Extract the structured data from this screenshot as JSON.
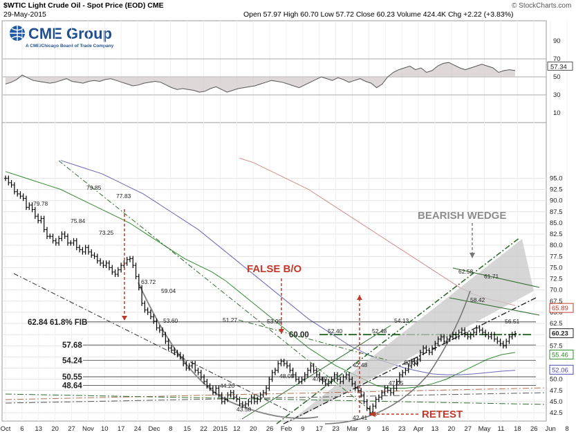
{
  "header": {
    "title": "$WTIC Light Crude Oil - Spot Price (EOD) CME",
    "date": "29-May-2015",
    "ohlc": "Open 57.97  High 60.70  Low 57.72  Close 60.23  Volume 424.4K  Chg +2.22 (+3.83%)",
    "watermark": "© StockCharts.com"
  },
  "logo": {
    "name": "CME Group",
    "subtitle": "A CME/Chicago Board of Trade Company"
  },
  "colors": {
    "price": "#000000",
    "ma_green": "#2e8b2e",
    "ma_blue": "#6a67b8",
    "ma_red": "#d48c8c",
    "annotation_red": "#c0392b",
    "annotation_gray": "#8c8c8c",
    "channel_green": "#2e6b2e",
    "badge_red": "#c0392b",
    "badge_green": "#2e8b2e",
    "badge_blue": "#4a4ab0"
  },
  "chart_data": [
    {
      "type": "line",
      "panel": "indicator",
      "ylim": [
        0,
        100
      ],
      "y_ticks": [
        10,
        30,
        50,
        70,
        90
      ],
      "last_value_label": "57.34",
      "levels": [
        30,
        50,
        70
      ],
      "values": [
        42,
        44,
        47,
        52,
        49,
        46,
        45,
        44,
        43,
        44,
        46,
        48,
        45,
        44,
        43,
        45,
        46,
        45,
        47,
        48,
        46,
        44,
        42,
        40,
        41,
        43,
        44,
        45,
        44,
        41,
        38,
        36,
        37,
        36,
        35,
        33,
        34,
        37,
        39,
        36,
        33,
        35,
        37,
        38,
        39,
        40,
        42,
        44,
        46,
        45,
        44,
        42,
        40,
        38,
        41,
        44,
        47,
        50,
        48,
        46,
        49,
        47,
        44,
        46,
        48,
        45,
        43,
        38,
        42,
        50,
        55,
        58,
        60,
        62,
        58,
        60,
        55,
        57,
        62,
        65,
        66,
        63,
        60,
        58,
        60,
        62,
        64,
        62,
        60,
        55,
        57,
        58,
        57
      ]
    },
    {
      "type": "line",
      "panel": "price",
      "title": "$WTIC Light Crude Oil - Spot Price (EOD) CME",
      "ylim": [
        41,
        99
      ],
      "y_ticks": [
        42.5,
        45.0,
        47.5,
        50.0,
        52.5,
        55.0,
        57.5,
        60.0,
        62.5,
        65.0,
        67.5,
        70.0,
        72.5,
        75.0,
        77.5,
        80.0,
        82.5,
        85.0,
        87.5,
        90.0,
        92.5,
        95.0
      ],
      "x_labels": [
        "Oct",
        "6",
        "13",
        "20",
        "27",
        "Nov",
        "10",
        "17",
        "24",
        "Dec",
        "8",
        "15",
        "22",
        "2015",
        "12",
        "20",
        "26",
        "Feb",
        "9",
        "17",
        "23",
        "Mar",
        "9",
        "16",
        "23",
        "Apr",
        "13",
        "20",
        "27",
        "May",
        "11",
        "18",
        "26",
        "Jun",
        "8"
      ],
      "close": [
        95.0,
        94.0,
        93.5,
        92.0,
        91.5,
        91.0,
        90.5,
        88.5,
        89.0,
        88.0,
        86.5,
        85.5,
        86.0,
        83.5,
        82.0,
        82.0,
        81.0,
        80.5,
        81.5,
        82.5,
        82.0,
        80.5,
        80.5,
        81.0,
        79.5,
        79.0,
        78.5,
        79.5,
        78.5,
        77.8,
        77.5,
        76.5,
        76.0,
        75.5,
        76.0,
        75.0,
        74.0,
        73.5,
        74.5,
        75.5,
        76.0,
        76.8,
        77.0,
        75.5,
        73.0,
        70.5,
        67.0,
        65.5,
        65.0,
        64.0,
        63.0,
        61.5,
        61.0,
        60.0,
        58.5,
        57.0,
        56.5,
        56.0,
        55.5,
        55.0,
        53.5,
        52.5,
        53.0,
        53.5,
        52.0,
        51.5,
        50.5,
        49.5,
        48.5,
        48.0,
        47.0,
        48.0,
        46.5,
        45.0,
        45.5,
        46.5,
        47.0,
        46.0,
        45.5,
        44.5,
        44.2,
        44.5,
        45.0,
        46.0,
        45.0,
        45.5,
        46.5,
        47.0,
        48.0,
        50.0,
        51.5,
        52.0,
        53.5,
        54.0,
        53.5,
        53.0,
        52.0,
        51.0,
        50.0,
        49.5,
        50.0,
        51.0,
        52.0,
        53.0,
        52.0,
        51.0,
        50.0,
        49.5,
        49.0,
        49.5,
        50.0,
        51.0,
        50.0,
        49.5,
        50.5,
        51.0,
        50.0,
        49.0,
        48.0,
        47.5,
        46.5,
        45.0,
        43.5,
        42.5,
        44.0,
        45.5,
        46.0,
        47.0,
        48.0,
        47.5,
        47.0,
        48.0,
        49.5,
        51.0,
        51.5,
        52.0,
        53.0,
        54.0,
        53.5,
        54.5,
        56.0,
        57.0,
        56.5,
        56.0,
        57.0,
        58.0,
        59.0,
        59.5,
        58.5,
        59.0,
        59.5,
        60.0,
        59.5,
        60.5,
        61.0,
        60.0,
        59.5,
        60.0,
        60.5,
        61.5,
        61.0,
        60.5,
        60.0,
        59.5,
        60.0,
        59.0,
        58.5,
        58.0,
        57.5,
        58.5,
        59.5,
        60.0,
        60.23
      ],
      "series": [
        {
          "name": "",
          "role": "ma_short",
          "values": [
            96.5,
            95.5,
            94.5,
            93.5,
            92.5,
            91.0,
            89.5,
            88.0,
            86.5,
            85.0,
            83.0,
            81.0,
            79.0,
            77.0,
            75.5,
            74.0,
            72.0,
            69.5,
            67.0,
            64.5,
            62.0,
            59.5,
            57.0,
            55.0,
            53.0,
            51.5,
            50.0,
            48.5,
            48.0,
            48.0,
            48.3,
            49.0,
            50.0,
            51.5,
            53.0,
            54.5,
            55.5,
            56.0
          ]
        },
        {
          "name": "",
          "role": "ma_mid",
          "values": [
            null,
            null,
            null,
            null,
            99.0,
            98.0,
            97.0,
            96.0,
            94.5,
            93.0,
            91.5,
            89.5,
            87.5,
            85.5,
            83.5,
            81.0,
            78.5,
            76.0,
            73.5,
            71.0,
            68.5,
            66.0,
            63.5,
            61.5,
            59.5,
            57.5,
            56.0,
            54.5,
            53.5,
            52.5,
            51.8,
            51.2,
            51.0,
            51.0,
            51.2,
            51.5,
            51.8,
            52.0
          ]
        },
        {
          "name": "",
          "role": "ma_long",
          "values": [
            null,
            null,
            null,
            null,
            null,
            null,
            null,
            null,
            null,
            null,
            null,
            null,
            null,
            null,
            null,
            null,
            null,
            99.5,
            98.5,
            97.0,
            95.5,
            94.0,
            92.5,
            90.5,
            88.5,
            86.5,
            84.5,
            82.5,
            80.5,
            78.5,
            76.5,
            74.5,
            72.5,
            70.5,
            69.0,
            68.0,
            67.3,
            66.5
          ]
        }
      ],
      "price_labels": [
        "79.85",
        "79.78",
        "77.83",
        "75.84",
        "73.25",
        "63.72",
        "59.04",
        "53.60",
        "51.27",
        "44.20",
        "43.58",
        "53.99",
        "48.05",
        "52.40",
        "47.80",
        "42.48",
        "42.41",
        "54.13",
        "52.48",
        "50.00",
        "47.05",
        "62.58",
        "61.71",
        "58.42",
        "56.51"
      ],
      "levels": [
        {
          "label": "62.84  61.8% FIB",
          "value": 62.84
        },
        {
          "label": "57.68",
          "value": 57.68
        },
        {
          "label": "54.24",
          "value": 54.24
        },
        {
          "label": "50.55",
          "value": 50.55
        },
        {
          "label": "48.64",
          "value": 48.64
        },
        {
          "label": "60.00",
          "value": 60.0
        }
      ],
      "annotations": [
        "FALSE B/O",
        "BEARISH WEDGE",
        "RETEST"
      ],
      "right_badges": [
        "65.89",
        "60.23",
        "55.46",
        "52.06"
      ]
    }
  ]
}
